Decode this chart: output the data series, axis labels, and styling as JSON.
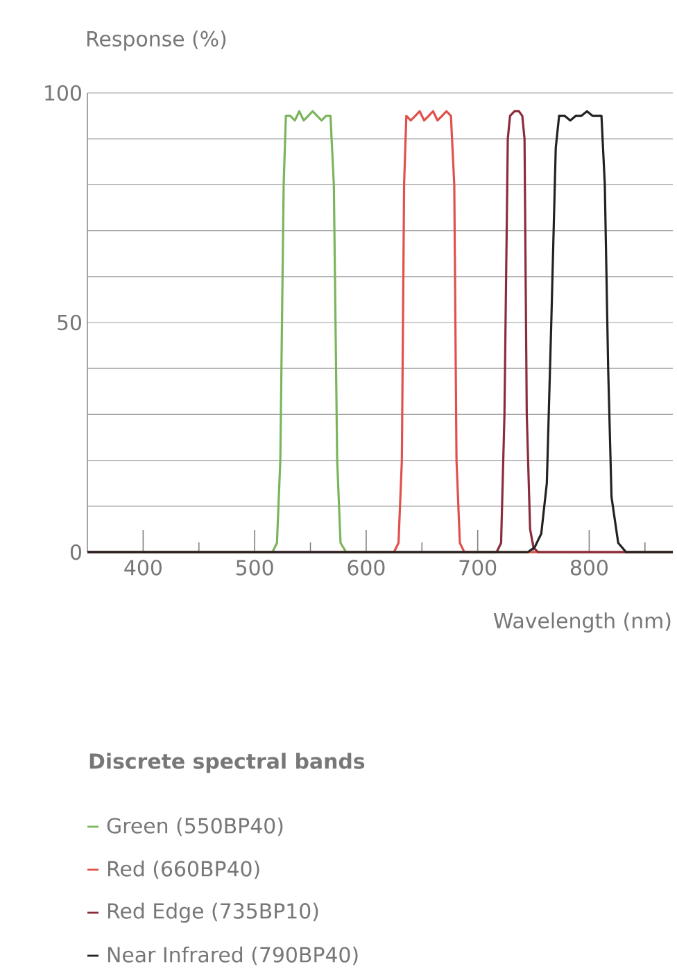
{
  "chart_data": {
    "type": "line",
    "ylabel": "Response (%)",
    "xlabel": "Wavelength (nm)",
    "legend_title": "Discrete spectral bands",
    "legend": "bottom",
    "grid": "y",
    "xlim": [
      350,
      875
    ],
    "ylim": [
      0,
      100
    ],
    "xticks": [
      400,
      {
        "value": 450,
        "label": null
      },
      500,
      {
        "value": 550,
        "label": null
      },
      600,
      {
        "value": 650,
        "label": null
      },
      700,
      {
        "value": 750,
        "label": null
      },
      800,
      {
        "value": 850,
        "label": null
      }
    ],
    "yticks": [
      0,
      {
        "value": 10,
        "label": null
      },
      {
        "value": 20,
        "label": null
      },
      {
        "value": 30,
        "label": null
      },
      {
        "value": 40,
        "label": null
      },
      50,
      {
        "value": 60,
        "label": null
      },
      {
        "value": 70,
        "label": null
      },
      {
        "value": 80,
        "label": null
      },
      {
        "value": 90,
        "label": null
      },
      100
    ],
    "series": [
      {
        "name": "Green (550BP40)",
        "color": "#7ab55c",
        "x": [
          350,
          516,
          520,
          523,
          526,
          528,
          532,
          536,
          540,
          544,
          548,
          552,
          556,
          560,
          564,
          568,
          571,
          574,
          577,
          582,
          875
        ],
        "values": [
          0,
          0,
          2,
          20,
          80,
          95,
          95,
          94,
          96,
          94,
          95,
          96,
          95,
          94,
          95,
          95,
          80,
          20,
          2,
          0,
          0
        ]
      },
      {
        "name": "Red (660BP40)",
        "color": "#e0514b",
        "x": [
          350,
          625,
          629,
          632,
          634,
          636,
          640,
          644,
          648,
          652,
          656,
          660,
          664,
          668,
          672,
          676,
          679,
          681,
          684,
          688,
          875
        ],
        "values": [
          0,
          0,
          2,
          20,
          80,
          95,
          94,
          95,
          96,
          94,
          95,
          96,
          94,
          95,
          96,
          95,
          80,
          20,
          2,
          0,
          0
        ]
      },
      {
        "name": "Red Edge (735BP10)",
        "color": "#8a2c3c",
        "x": [
          350,
          717,
          721,
          724,
          727,
          729,
          733,
          737,
          740,
          742,
          744,
          747,
          750,
          754,
          875
        ],
        "values": [
          0,
          0,
          2,
          30,
          90,
          95,
          96,
          96,
          95,
          90,
          30,
          5,
          1,
          0,
          0
        ]
      },
      {
        "name": "Near Infrared (790BP40)",
        "color": "#222222",
        "x": [
          350,
          745,
          751,
          757,
          762,
          766,
          770,
          773,
          778,
          783,
          788,
          793,
          798,
          803,
          808,
          811,
          814,
          817,
          820,
          826,
          833,
          875
        ],
        "values": [
          0,
          0,
          1,
          4,
          15,
          50,
          88,
          95,
          95,
          94,
          95,
          95,
          96,
          95,
          95,
          95,
          80,
          40,
          12,
          2,
          0,
          0
        ]
      }
    ]
  }
}
